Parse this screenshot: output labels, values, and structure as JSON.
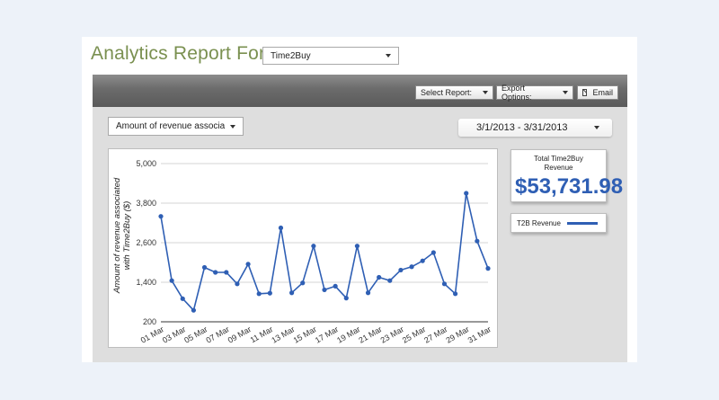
{
  "header": {
    "title": "Analytics Report For:",
    "site_selected": "Time2Buy"
  },
  "toolbar": {
    "select_report": "Select Report:",
    "export_options": "Export Options:",
    "email": "Email"
  },
  "filters": {
    "metric_selected": "Amount of revenue associa",
    "date_range": "3/1/2013 - 3/31/2013"
  },
  "summary": {
    "total_label": "Total Time2Buy Revenue",
    "total_value": "$53,731.98"
  },
  "legend": {
    "label": "T2B Revenue",
    "color": "#2f5fb4"
  },
  "icons": {
    "caret": "chevron-down-icon",
    "email": "envelope-icon"
  },
  "chart_data": {
    "type": "line",
    "title": "",
    "xlabel": "",
    "ylabel": "Amount of revenue associated with Time2Buy ($)",
    "ylim": [
      200,
      5000
    ],
    "yticks": [
      "5,000",
      "3,800",
      "2,600",
      "1,400",
      "200"
    ],
    "ytick_values": [
      5000,
      3800,
      2600,
      1400,
      200
    ],
    "xtick_labels": [
      "01 Mar",
      "03 Mar",
      "05 Mar",
      "07 Mar",
      "09 Mar",
      "11 Mar",
      "13 Mar",
      "15 Mar",
      "17 Mar",
      "19 Mar",
      "21 Mar",
      "23 Mar",
      "25 Mar",
      "27 Mar",
      "29 Mar",
      "31 Mar"
    ],
    "x": [
      "01 Mar",
      "02 Mar",
      "03 Mar",
      "04 Mar",
      "05 Mar",
      "06 Mar",
      "07 Mar",
      "08 Mar",
      "09 Mar",
      "10 Mar",
      "11 Mar",
      "12 Mar",
      "13 Mar",
      "14 Mar",
      "15 Mar",
      "16 Mar",
      "17 Mar",
      "18 Mar",
      "19 Mar",
      "20 Mar",
      "21 Mar",
      "22 Mar",
      "23 Mar",
      "24 Mar",
      "25 Mar",
      "26 Mar",
      "27 Mar",
      "28 Mar",
      "29 Mar",
      "30 Mar",
      "31 Mar"
    ],
    "series": [
      {
        "name": "T2B Revenue",
        "color": "#2f5fb4",
        "values": [
          3400,
          1450,
          900,
          550,
          1850,
          1700,
          1700,
          1350,
          1950,
          1050,
          1070,
          3050,
          1080,
          1380,
          2500,
          1170,
          1280,
          920,
          2500,
          1080,
          1550,
          1450,
          1770,
          1870,
          2050,
          2300,
          1350,
          1050,
          4100,
          2650,
          1820
        ]
      }
    ],
    "grid": true,
    "legend_position": "right"
  }
}
